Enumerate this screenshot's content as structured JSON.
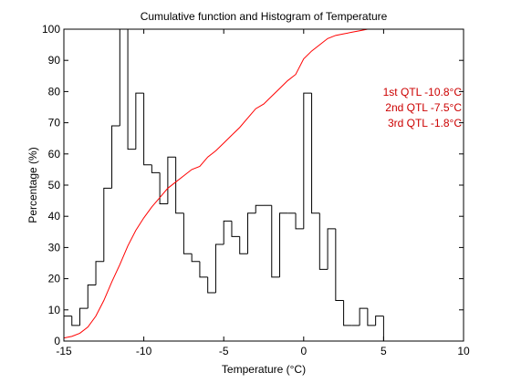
{
  "chart_data": {
    "type": "line",
    "title": "Cumulative function and Histogram of Temperature",
    "xlabel": "Temperature (°C)",
    "ylabel": "Percentage (%)",
    "xlim": [
      -15,
      10
    ],
    "ylim": [
      0,
      100
    ],
    "xticks": [
      -15,
      -10,
      -5,
      0,
      5,
      10
    ],
    "xtick_labels": [
      "-15",
      "-10",
      "-5",
      "0",
      "5",
      "10"
    ],
    "yticks": [
      0,
      10,
      20,
      30,
      40,
      50,
      60,
      70,
      80,
      90,
      100
    ],
    "ytick_labels": [
      "0",
      "10",
      "20",
      "30",
      "40",
      "50",
      "60",
      "70",
      "80",
      "90",
      "100"
    ],
    "grid": false,
    "series": [
      {
        "kind": "histogram",
        "color": "#000000",
        "bin_width": 0.5,
        "bins_start": [
          -15,
          -14.5,
          -14,
          -13.5,
          -13,
          -12.5,
          -12,
          -11.5,
          -11,
          -10.5,
          -10,
          -9.5,
          -9,
          -8.5,
          -8,
          -7.5,
          -7,
          -6.5,
          -6,
          -5.5,
          -5,
          -4.5,
          -4,
          -3.5,
          -3,
          -2.5,
          -2,
          -1.5,
          -1,
          -0.5,
          0,
          0.5,
          1,
          1.5,
          2,
          2.5,
          3,
          3.5,
          4,
          4.5
        ],
        "values": [
          8,
          5,
          10.5,
          18,
          25.5,
          49,
          69,
          100,
          61.5,
          79.5,
          56.5,
          54,
          44,
          59,
          41,
          28,
          25.5,
          20.5,
          15.5,
          31,
          38.5,
          33.5,
          28,
          41,
          43.5,
          43.5,
          20.5,
          41,
          41,
          36,
          79.5,
          41,
          23,
          36,
          13,
          5,
          5,
          10.5,
          5,
          8
        ]
      },
      {
        "kind": "cumulative",
        "color": "#ff0000",
        "x": [
          -15,
          -14.5,
          -14,
          -13.5,
          -13,
          -12.5,
          -12,
          -11.5,
          -11,
          -10.5,
          -10,
          -9.5,
          -9,
          -8.5,
          -8,
          -7.5,
          -7,
          -6.5,
          -6,
          -5.5,
          -5,
          -4.5,
          -4,
          -3.5,
          -3,
          -2.5,
          -2,
          -1.5,
          -1,
          -0.5,
          0,
          0.5,
          1,
          1.5,
          2,
          2.5,
          3,
          3.5,
          4,
          4.5,
          5,
          10
        ],
        "y": [
          1,
          1.5,
          2.5,
          4.5,
          8,
          13,
          19,
          24.5,
          30.5,
          35.5,
          39.5,
          43,
          46,
          49,
          51,
          53,
          55,
          56,
          59,
          61,
          63.5,
          66,
          68.5,
          71.5,
          74.5,
          76,
          78.5,
          81,
          83.5,
          85.5,
          90.5,
          93,
          95,
          97,
          98,
          98.5,
          99,
          99.5,
          100,
          100,
          100,
          100
        ]
      }
    ],
    "annotations": [
      {
        "text": "1st QTL -10.8°C",
        "color": "#cc0000"
      },
      {
        "text": "2nd QTL -7.5°C",
        "color": "#cc0000"
      },
      {
        "text": "3rd QTL -1.8°C",
        "color": "#cc0000"
      }
    ]
  }
}
